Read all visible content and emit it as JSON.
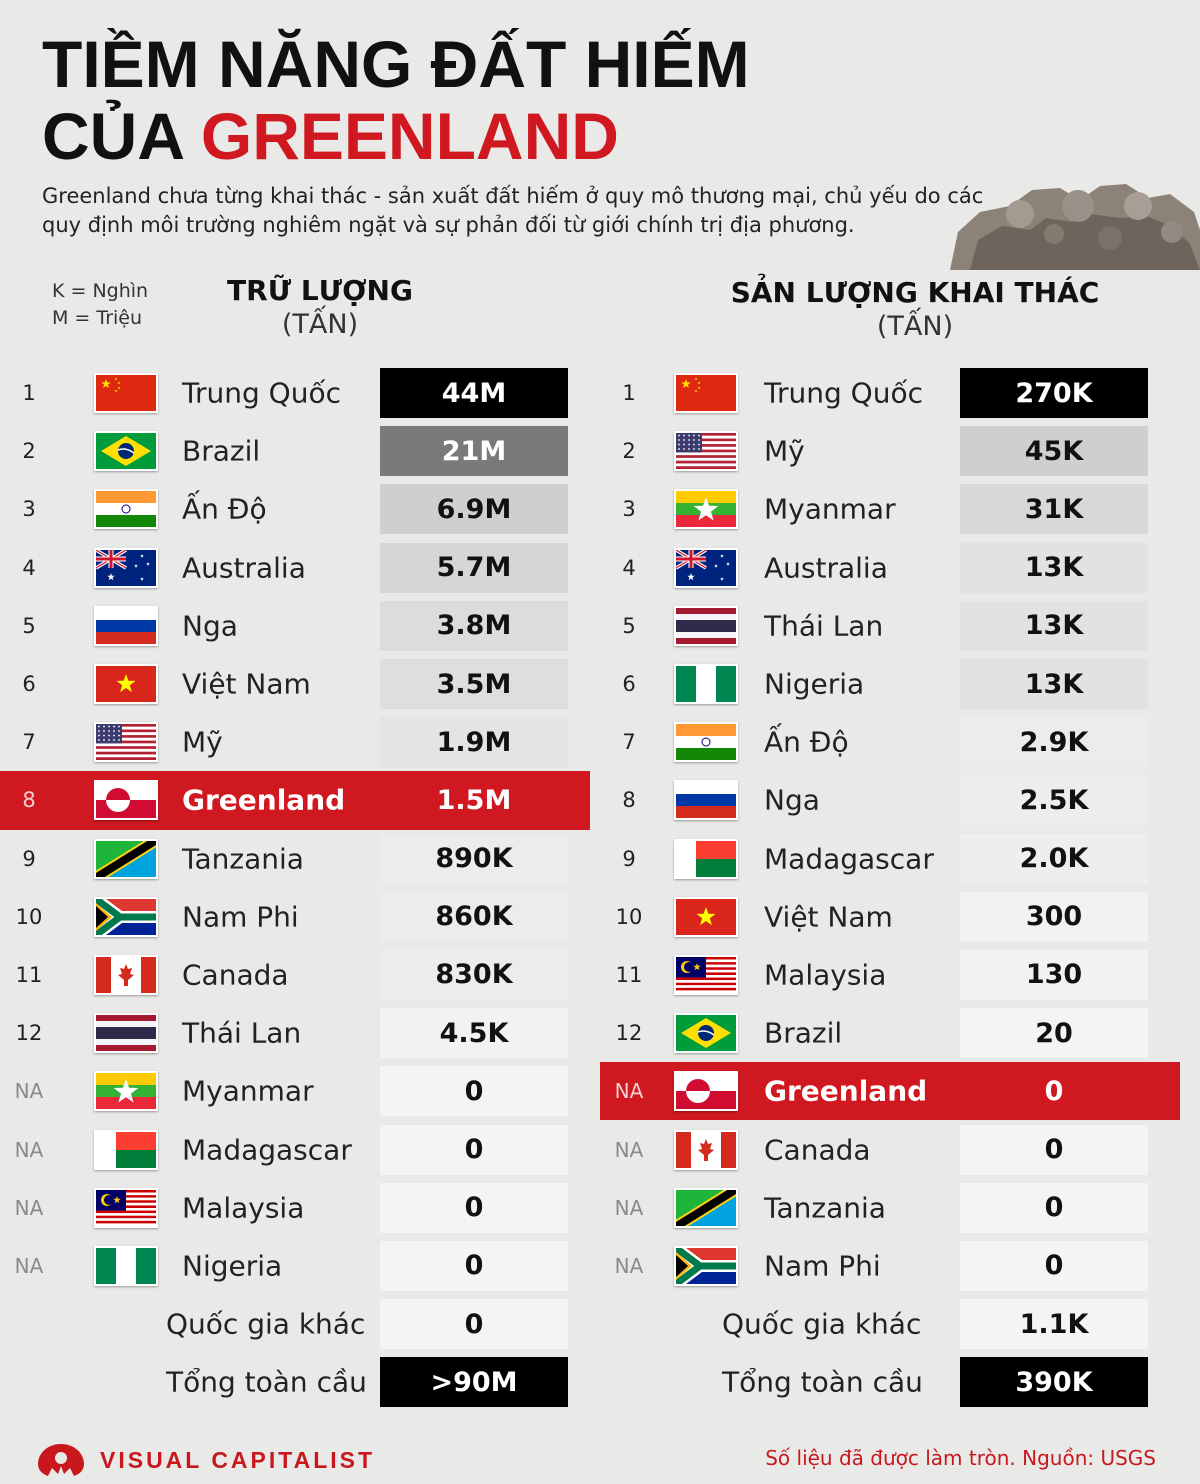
{
  "header": {
    "title_line1": "TIỀM NĂNG ĐẤT HIẾM",
    "title_line2_prefix": "CỦA ",
    "title_line2_highlight": "GREENLAND",
    "subtitle": "Greenland chưa từng khai thác - sản xuất đất hiếm ở quy mô thương mại, chủ yếu do các quy định môi trường nghiêm ngặt và sự phản đối từ giới chính trị địa phương."
  },
  "legend": {
    "k": "K = Nghìn",
    "m": "M = Triệu"
  },
  "colors": {
    "accent": "#d01820",
    "top": "#000000"
  },
  "chart_data": [
    {
      "type": "table",
      "title": "TRỮ LƯỢNG",
      "unit": "(TẤN)",
      "rows": [
        {
          "rank": "1",
          "country": "Trung Quốc",
          "flag": "china",
          "value": "44M",
          "shade": "#000000",
          "text": "#ffffff"
        },
        {
          "rank": "2",
          "country": "Brazil",
          "flag": "brazil",
          "value": "21M",
          "shade": "#7a7a7a",
          "text": "#ffffff"
        },
        {
          "rank": "3",
          "country": "Ấn Độ",
          "flag": "india",
          "value": "6.9M",
          "shade": "#cfcfcf",
          "text": "#111111"
        },
        {
          "rank": "4",
          "country": "Australia",
          "flag": "australia",
          "value": "5.7M",
          "shade": "#d6d6d6",
          "text": "#111111"
        },
        {
          "rank": "5",
          "country": "Nga",
          "flag": "russia",
          "value": "3.8M",
          "shade": "#dcdcdc",
          "text": "#111111"
        },
        {
          "rank": "6",
          "country": "Việt Nam",
          "flag": "vietnam",
          "value": "3.5M",
          "shade": "#dedede",
          "text": "#111111"
        },
        {
          "rank": "7",
          "country": "Mỹ",
          "flag": "usa",
          "value": "1.9M",
          "shade": "#e4e4e4",
          "text": "#111111"
        },
        {
          "rank": "8",
          "country": "Greenland",
          "flag": "greenland",
          "value": "1.5M",
          "shade": "#d01820",
          "text": "#ffffff",
          "highlight": true
        },
        {
          "rank": "9",
          "country": "Tanzania",
          "flag": "tanzania",
          "value": "890K",
          "shade": "#ececec",
          "text": "#111111"
        },
        {
          "rank": "10",
          "country": "Nam Phi",
          "flag": "southafrica",
          "value": "860K",
          "shade": "#ececec",
          "text": "#111111"
        },
        {
          "rank": "11",
          "country": "Canada",
          "flag": "canada",
          "value": "830K",
          "shade": "#ececec",
          "text": "#111111"
        },
        {
          "rank": "12",
          "country": "Thái Lan",
          "flag": "thailand",
          "value": "4.5K",
          "shade": "#f2f2f2",
          "text": "#111111"
        },
        {
          "rank": "NA",
          "country": "Myanmar",
          "flag": "myanmar",
          "value": "0",
          "shade": "#f4f4f4",
          "text": "#111111"
        },
        {
          "rank": "NA",
          "country": "Madagascar",
          "flag": "madagascar",
          "value": "0",
          "shade": "#f4f4f4",
          "text": "#111111"
        },
        {
          "rank": "NA",
          "country": "Malaysia",
          "flag": "malaysia",
          "value": "0",
          "shade": "#f4f4f4",
          "text": "#111111"
        },
        {
          "rank": "NA",
          "country": "Nigeria",
          "flag": "nigeria",
          "value": "0",
          "shade": "#f4f4f4",
          "text": "#111111"
        },
        {
          "rank": "",
          "country": "Quốc gia khác",
          "flag": "",
          "value": "0",
          "shade": "#f4f4f4",
          "text": "#111111",
          "kind": "other"
        },
        {
          "rank": "",
          "country": "Tổng toàn cầu",
          "flag": "",
          "value": ">90M",
          "shade": "#000000",
          "text": "#ffffff",
          "kind": "total"
        }
      ]
    },
    {
      "type": "table",
      "title": "SẢN LƯỢNG KHAI THÁC",
      "unit": "(TẤN)",
      "rows": [
        {
          "rank": "1",
          "country": "Trung Quốc",
          "flag": "china",
          "value": "270K",
          "shade": "#000000",
          "text": "#ffffff"
        },
        {
          "rank": "2",
          "country": "Mỹ",
          "flag": "usa",
          "value": "45K",
          "shade": "#cfcfcf",
          "text": "#111111"
        },
        {
          "rank": "3",
          "country": "Myanmar",
          "flag": "myanmar",
          "value": "31K",
          "shade": "#d8d8d8",
          "text": "#111111"
        },
        {
          "rank": "4",
          "country": "Australia",
          "flag": "australia",
          "value": "13K",
          "shade": "#e2e2e2",
          "text": "#111111"
        },
        {
          "rank": "5",
          "country": "Thái Lan",
          "flag": "thailand",
          "value": "13K",
          "shade": "#e2e2e2",
          "text": "#111111"
        },
        {
          "rank": "6",
          "country": "Nigeria",
          "flag": "nigeria",
          "value": "13K",
          "shade": "#e2e2e2",
          "text": "#111111"
        },
        {
          "rank": "7",
          "country": "Ấn Độ",
          "flag": "india",
          "value": "2.9K",
          "shade": "#ececec",
          "text": "#111111"
        },
        {
          "rank": "8",
          "country": "Nga",
          "flag": "russia",
          "value": "2.5K",
          "shade": "#ededed",
          "text": "#111111"
        },
        {
          "rank": "9",
          "country": "Madagascar",
          "flag": "madagascar",
          "value": "2.0K",
          "shade": "#eeeeee",
          "text": "#111111"
        },
        {
          "rank": "10",
          "country": "Việt Nam",
          "flag": "vietnam",
          "value": "300",
          "shade": "#f2f2f2",
          "text": "#111111"
        },
        {
          "rank": "11",
          "country": "Malaysia",
          "flag": "malaysia",
          "value": "130",
          "shade": "#f2f2f2",
          "text": "#111111"
        },
        {
          "rank": "12",
          "country": "Brazil",
          "flag": "brazil",
          "value": "20",
          "shade": "#f4f4f4",
          "text": "#111111"
        },
        {
          "rank": "NA",
          "country": "Greenland",
          "flag": "greenland",
          "value": "0",
          "shade": "#d01820",
          "text": "#ffffff",
          "highlight": true
        },
        {
          "rank": "NA",
          "country": "Canada",
          "flag": "canada",
          "value": "0",
          "shade": "#f4f4f4",
          "text": "#111111"
        },
        {
          "rank": "NA",
          "country": "Tanzania",
          "flag": "tanzania",
          "value": "0",
          "shade": "#f4f4f4",
          "text": "#111111"
        },
        {
          "rank": "NA",
          "country": "Nam Phi",
          "flag": "southafrica",
          "value": "0",
          "shade": "#f4f4f4",
          "text": "#111111"
        },
        {
          "rank": "",
          "country": "Quốc gia khác",
          "flag": "",
          "value": "1.1K",
          "shade": "#f4f4f4",
          "text": "#111111",
          "kind": "other"
        },
        {
          "rank": "",
          "country": "Tổng toàn cầu",
          "flag": "",
          "value": "390K",
          "shade": "#000000",
          "text": "#ffffff",
          "kind": "total"
        }
      ]
    }
  ],
  "footer": {
    "brand": "VISUAL CAPITALIST",
    "source": "Số liệu đã được làm tròn. Nguồn: USGS"
  }
}
